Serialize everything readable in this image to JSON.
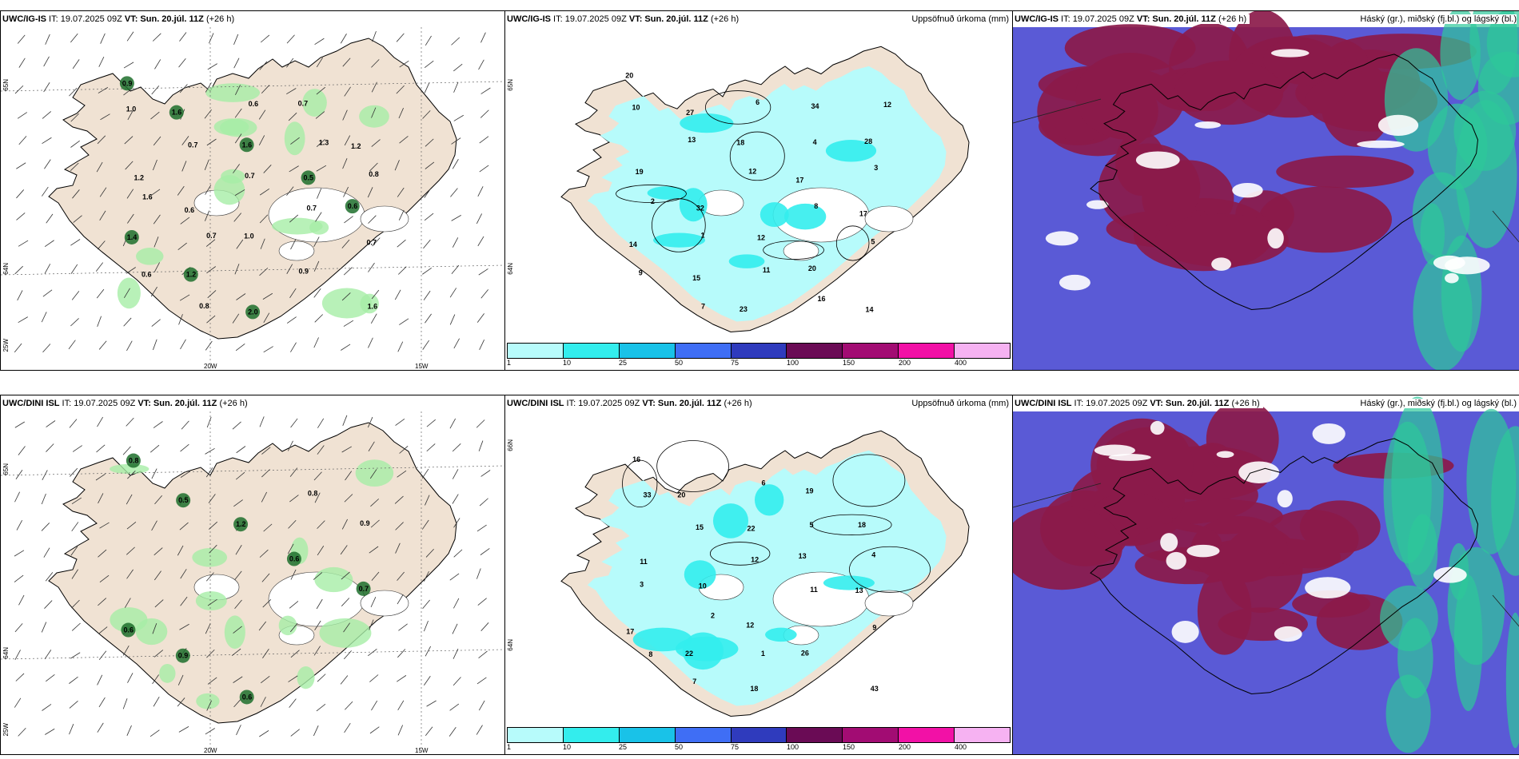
{
  "panels": [
    {
      "id": "p1",
      "model": "UWC/IG-IS",
      "it": " IT: 19.07.2025 09Z ",
      "vt_label": "VT:",
      "vt": "Sun. 20.júl. 11Z",
      "lead": " (+26 h)",
      "right_title": "",
      "lat_labels": [
        "65N",
        "64N",
        "25W"
      ],
      "lon_labels": [
        "20W",
        "15W"
      ],
      "values": [
        "0.9",
        "1.6",
        "1.6",
        "0.5",
        "0.6",
        "1.4",
        "1.2",
        "2.0",
        "0.7",
        "1.2",
        "1.2",
        "0.6",
        "1.0",
        "0.9",
        "1.6",
        "1.0",
        "0.7",
        "0.7",
        "0.7",
        "0.7",
        "0.6",
        "0.8",
        "0.6",
        "1.3",
        "0.8",
        "1.6",
        "0.7"
      ]
    },
    {
      "id": "p2",
      "model": "UWC/IG-IS",
      "it": " IT: 19.07.2025 09Z ",
      "vt_label": "VT:",
      "vt": "Sun. 20.júl. 11Z",
      "lead": " (+26 h)",
      "right_title": "Uppsöfnuð úrkoma (mm)",
      "lat_labels": [
        "65N",
        "64N"
      ],
      "lon_labels": [],
      "values": [
        "20",
        "27",
        "18",
        "17",
        "17",
        "14",
        "15",
        "23",
        "34",
        "28",
        "19",
        "32",
        "12",
        "20",
        "14",
        "10",
        "13",
        "12",
        "8",
        "5",
        "9",
        "7",
        "6",
        "4",
        "3",
        "2",
        "1",
        "11",
        "16",
        "12"
      ],
      "legend": {
        "ticks": [
          "1",
          "10",
          "25",
          "50",
          "75",
          "100",
          "150",
          "200",
          "400"
        ],
        "colors": [
          "#b7fbfb",
          "#33eded",
          "#19c2e8",
          "#3f6ef5",
          "#2f3bbd",
          "#6a0b55",
          "#a20c73",
          "#f211a6",
          "#f6b2f2"
        ]
      }
    },
    {
      "id": "p3",
      "model": "UWC/IG-IS",
      "it": " IT: 19.07.2025 09Z ",
      "vt_label": "VT:",
      "vt": "Sun. 20.júl. 11Z",
      "lead": " (+26 h)",
      "right_title": "Háský (gr.), miðský (fj.bl.) og lágský (bl.)",
      "lat_labels": [],
      "lon_labels": [],
      "values": []
    },
    {
      "id": "p4",
      "model": "UWC/DINI ISL",
      "it": " IT: 19.07.2025 09Z ",
      "vt_label": "VT:",
      "vt": "Sun. 20.júl. 11Z",
      "lead": " (+26 h)",
      "right_title": "",
      "lat_labels": [
        "65N",
        "64N",
        "25W"
      ],
      "lon_labels": [
        "20W",
        "15W"
      ],
      "values": [
        "0.8",
        "0.5",
        "1.2",
        "0.6",
        "0.7",
        "0.6",
        "0.9",
        "0.6",
        "0.8",
        "0.9"
      ]
    },
    {
      "id": "p5",
      "model": "UWC/DINI ISL",
      "it": " IT: 19.07.2025 09Z ",
      "vt_label": "VT:",
      "vt": "Sun. 20.júl. 11Z",
      "lead": " (+26 h)",
      "right_title": "Uppsöfnuð úrkoma (mm)",
      "lat_labels": [
        "66N",
        "64N"
      ],
      "lon_labels": [],
      "values": [
        "16",
        "20",
        "22",
        "13",
        "13",
        "17",
        "22",
        "18",
        "19",
        "18",
        "11",
        "10",
        "12",
        "26",
        "43",
        "33",
        "15",
        "12",
        "11",
        "9",
        "8",
        "7",
        "6",
        "5",
        "4",
        "3",
        "2",
        "1"
      ],
      "legend": {
        "ticks": [
          "1",
          "10",
          "25",
          "50",
          "75",
          "100",
          "150",
          "200",
          "400"
        ],
        "colors": [
          "#b7fbfb",
          "#33eded",
          "#19c2e8",
          "#3f6ef5",
          "#2f3bbd",
          "#6a0b55",
          "#a20c73",
          "#f211a6",
          "#f6b2f2"
        ]
      }
    },
    {
      "id": "p6",
      "model": "UWC/DINI ISL",
      "it": " IT: 19.07.2025 09Z ",
      "vt_label": "VT:",
      "vt": "Sun. 20.júl. 11Z",
      "lead": " (+26 h)",
      "right_title": "Háský (gr.), miðský (fj.bl.) og lágský (bl.)",
      "lat_labels": [],
      "lon_labels": [],
      "values": []
    }
  ],
  "colors": {
    "land": "#f0e2d3",
    "precip_light": "#b7fbfb",
    "precip_mid": "#33eded",
    "wind_green": "#a6eea6",
    "wind_dark": "#1d6e2c",
    "high_cloud": "#8b1a4a",
    "mid_cloud": "#5a5ad6",
    "low_cloud": "#2ec79a",
    "ice": "#ffffff"
  }
}
